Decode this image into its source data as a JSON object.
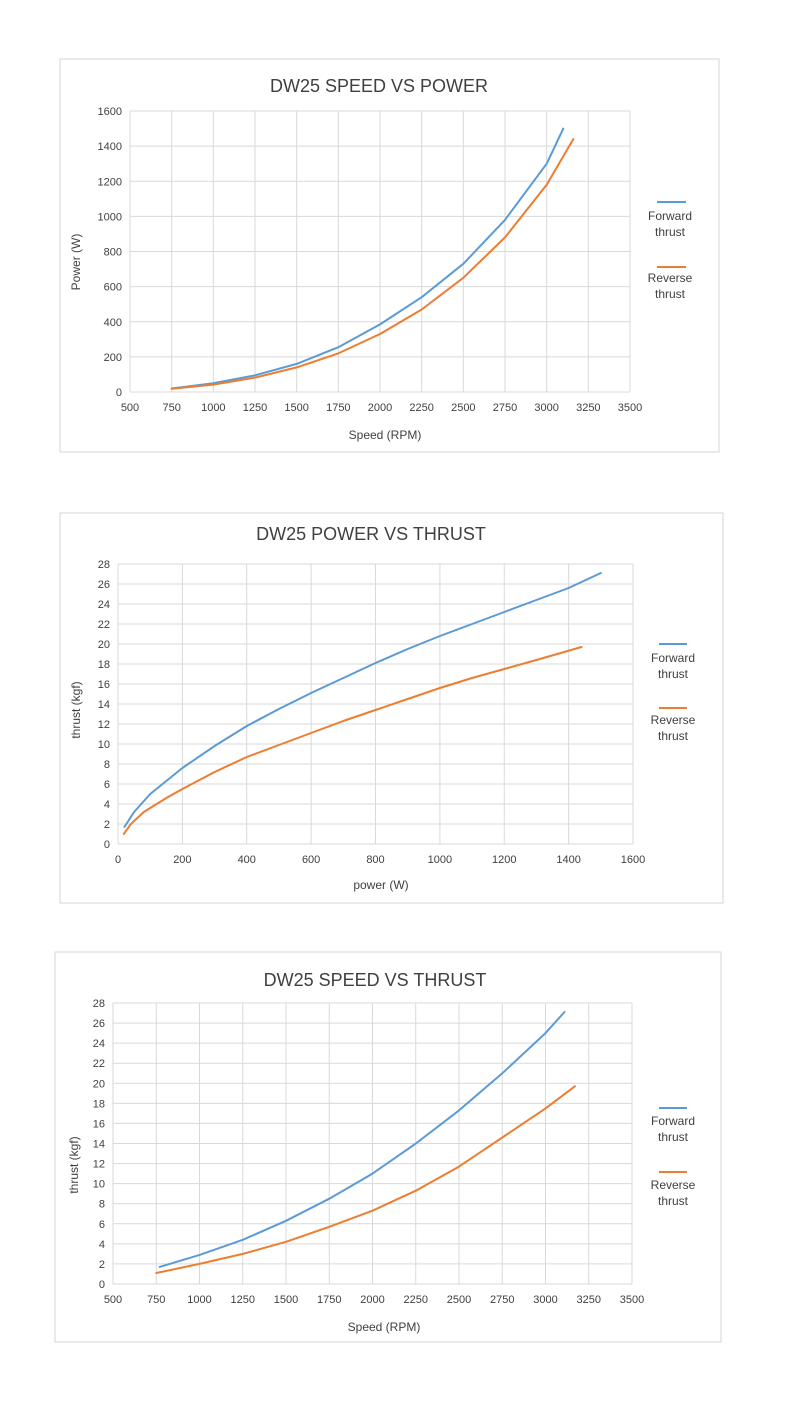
{
  "chart_data": [
    {
      "type": "line",
      "title": "DW25 SPEED VS POWER",
      "xlabel": "Speed (RPM)",
      "ylabel": "Power (W)",
      "xlim": [
        500,
        3500
      ],
      "ylim": [
        0,
        1600
      ],
      "xticks": [
        500,
        750,
        1000,
        1250,
        1500,
        1750,
        2000,
        2250,
        2500,
        2750,
        3000,
        3250,
        3500
      ],
      "yticks": [
        0,
        200,
        400,
        600,
        800,
        1000,
        1200,
        1400,
        1600
      ],
      "grid": true,
      "legend_position": "right",
      "series": [
        {
          "name": "Forward thrust",
          "color": "#5b9bd5",
          "x": [
            750,
            1000,
            1250,
            1500,
            1750,
            2000,
            2250,
            2500,
            2750,
            3000,
            3100
          ],
          "y": [
            20,
            50,
            95,
            160,
            255,
            385,
            540,
            730,
            980,
            1300,
            1500
          ]
        },
        {
          "name": "Reverse thrust",
          "color": "#ed7d31",
          "x": [
            750,
            1000,
            1250,
            1500,
            1750,
            2000,
            2250,
            2500,
            2750,
            3000,
            3160
          ],
          "y": [
            18,
            42,
            82,
            140,
            220,
            330,
            470,
            650,
            880,
            1180,
            1440
          ]
        }
      ]
    },
    {
      "type": "line",
      "title": "DW25 POWER VS THRUST",
      "xlabel": "power (W)",
      "ylabel": "thrust (kgf)",
      "xlim": [
        0,
        1600
      ],
      "ylim": [
        0,
        28
      ],
      "xticks": [
        0,
        200,
        400,
        600,
        800,
        1000,
        1200,
        1400,
        1600
      ],
      "yticks": [
        0,
        2,
        4,
        6,
        8,
        10,
        12,
        14,
        16,
        18,
        20,
        22,
        24,
        26,
        28
      ],
      "grid": true,
      "legend_position": "right",
      "series": [
        {
          "name": "Forward thrust",
          "color": "#5b9bd5",
          "x": [
            20,
            50,
            100,
            200,
            300,
            400,
            500,
            600,
            700,
            800,
            900,
            1000,
            1100,
            1200,
            1300,
            1400,
            1500
          ],
          "y": [
            1.7,
            3.2,
            5.0,
            7.6,
            9.8,
            11.8,
            13.5,
            15.1,
            16.6,
            18.1,
            19.5,
            20.8,
            22.0,
            23.2,
            24.4,
            25.6,
            27.1
          ]
        },
        {
          "name": "Reverse thrust",
          "color": "#ed7d31",
          "x": [
            18,
            40,
            80,
            150,
            200,
            300,
            400,
            500,
            600,
            700,
            800,
            900,
            1000,
            1100,
            1200,
            1300,
            1440
          ],
          "y": [
            1.0,
            2.0,
            3.2,
            4.6,
            5.5,
            7.2,
            8.7,
            9.9,
            11.1,
            12.3,
            13.4,
            14.5,
            15.6,
            16.6,
            17.5,
            18.4,
            19.7
          ]
        }
      ]
    },
    {
      "type": "line",
      "title": "DW25 SPEED VS THRUST",
      "xlabel": "Speed (RPM)",
      "ylabel": "thrust (kgf)",
      "xlim": [
        500,
        3500
      ],
      "ylim": [
        0,
        28
      ],
      "xticks": [
        500,
        750,
        1000,
        1250,
        1500,
        1750,
        2000,
        2250,
        2500,
        2750,
        3000,
        3250,
        3500
      ],
      "yticks": [
        0,
        2,
        4,
        6,
        8,
        10,
        12,
        14,
        16,
        18,
        20,
        22,
        24,
        26,
        28
      ],
      "grid": true,
      "legend_position": "right",
      "series": [
        {
          "name": "Forward thrust",
          "color": "#5b9bd5",
          "x": [
            770,
            1000,
            1250,
            1500,
            1750,
            2000,
            2250,
            2500,
            2750,
            3000,
            3110
          ],
          "y": [
            1.7,
            2.9,
            4.4,
            6.3,
            8.5,
            11.0,
            14.0,
            17.3,
            21.0,
            25.0,
            27.1
          ]
        },
        {
          "name": "Reverse thrust",
          "color": "#ed7d31",
          "x": [
            750,
            1000,
            1250,
            1500,
            1750,
            2000,
            2250,
            2500,
            2750,
            3000,
            3170
          ],
          "y": [
            1.1,
            2.0,
            3.0,
            4.2,
            5.7,
            7.3,
            9.3,
            11.7,
            14.6,
            17.5,
            19.7
          ]
        }
      ]
    }
  ]
}
